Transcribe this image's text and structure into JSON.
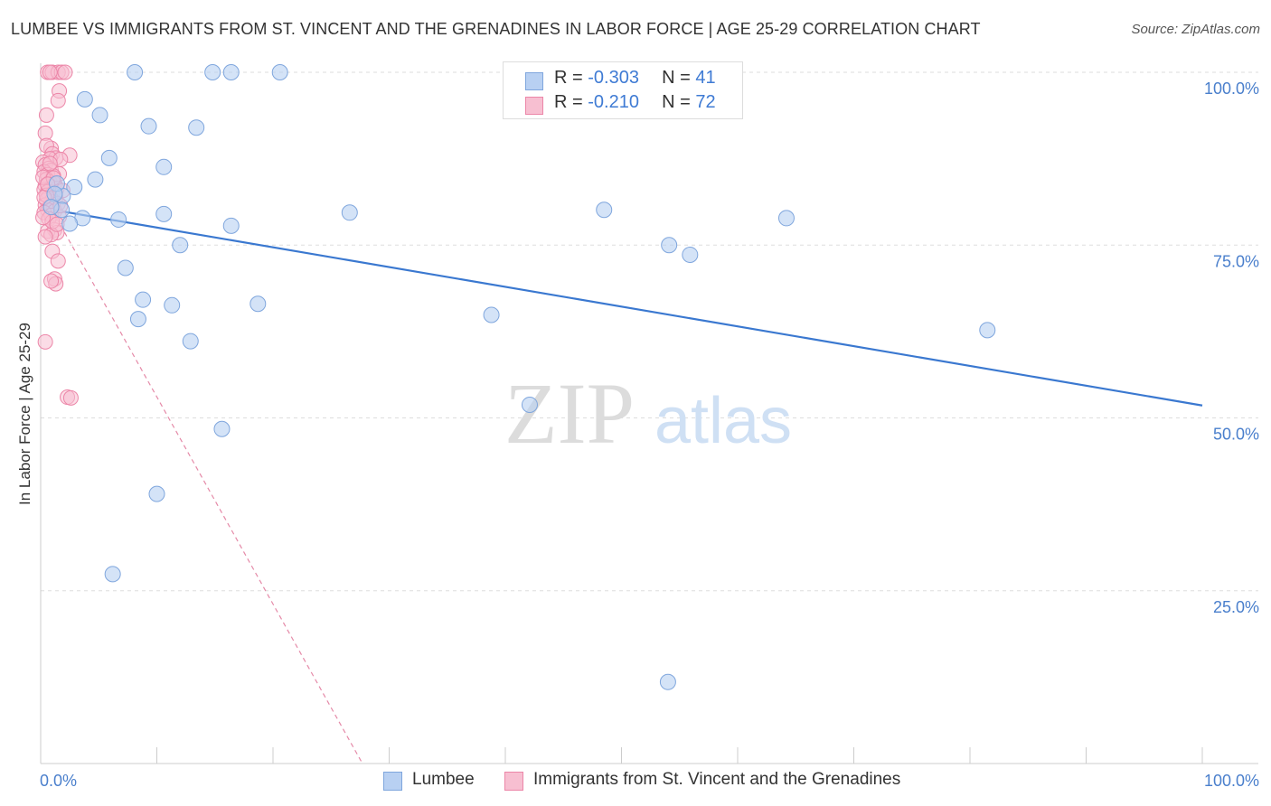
{
  "title": "LUMBEE VS IMMIGRANTS FROM ST. VINCENT AND THE GRENADINES IN LABOR FORCE | AGE 25-29 CORRELATION CHART",
  "source": "Source: ZipAtlas.com",
  "legend": {
    "row1": {
      "r_label": "R =",
      "r_value": "-0.303",
      "n_label": "N =",
      "n_value": "41"
    },
    "row2": {
      "r_label": "R =",
      "r_value": "-0.210",
      "n_label": "N =",
      "n_value": "72"
    }
  },
  "watermark": {
    "zip": "ZIP",
    "atlas": "atlas"
  },
  "colors": {
    "blue_fill": "#b8d0f2",
    "blue_stroke": "#7fa6dd",
    "blue_line": "#3a78d0",
    "pink_fill": "#f7bfd1",
    "pink_stroke": "#ec86a8",
    "pink_line": "#e58aa8",
    "axis_text": "#4a7fcc",
    "grid": "#dddddd"
  },
  "chart_data": {
    "type": "scatter",
    "title": "LUMBEE VS IMMIGRANTS FROM ST. VINCENT AND THE GRENADINES IN LABOR FORCE | AGE 25-29 CORRELATION CHART",
    "xlabel": "",
    "ylabel": "In Labor Force | Age 25-29",
    "xlim": [
      0,
      100
    ],
    "ylim": [
      0,
      100
    ],
    "x_tick_labels": [
      "0.0%",
      "100.0%"
    ],
    "y_ticks": [
      {
        "value": 25,
        "label": "25.0%"
      },
      {
        "value": 50,
        "label": "50.0%"
      },
      {
        "value": 75,
        "label": "75.0%"
      },
      {
        "value": 100,
        "label": "100.0%"
      }
    ],
    "grid": true,
    "legend_position": "top-center",
    "series": [
      {
        "name": "Lumbee",
        "color": "blue",
        "trend": {
          "x0": 0,
          "y0": 80.4,
          "x1": 100,
          "y1": 51.8
        },
        "points": [
          [
            8.1,
            100
          ],
          [
            14.8,
            100
          ],
          [
            16.4,
            100
          ],
          [
            20.6,
            100
          ],
          [
            3.8,
            96.1
          ],
          [
            5.1,
            93.8
          ],
          [
            9.3,
            92.2
          ],
          [
            13.4,
            92.0
          ],
          [
            5.9,
            87.6
          ],
          [
            10.6,
            86.3
          ],
          [
            4.7,
            84.5
          ],
          [
            2.9,
            83.4
          ],
          [
            1.9,
            82.1
          ],
          [
            1.8,
            80.1
          ],
          [
            3.6,
            78.9
          ],
          [
            6.7,
            78.7
          ],
          [
            10.6,
            79.5
          ],
          [
            16.4,
            77.8
          ],
          [
            26.6,
            79.7
          ],
          [
            48.5,
            80.1
          ],
          [
            64.2,
            78.9
          ],
          [
            2.5,
            78.1
          ],
          [
            12.0,
            75.0
          ],
          [
            7.3,
            71.7
          ],
          [
            54.1,
            75.0
          ],
          [
            55.9,
            73.6
          ],
          [
            8.8,
            67.1
          ],
          [
            11.3,
            66.3
          ],
          [
            18.7,
            66.5
          ],
          [
            8.4,
            64.3
          ],
          [
            38.8,
            64.9
          ],
          [
            81.5,
            62.7
          ],
          [
            12.9,
            61.1
          ],
          [
            42.1,
            51.9
          ],
          [
            15.6,
            48.4
          ],
          [
            10.0,
            39.0
          ],
          [
            6.2,
            27.4
          ],
          [
            54.0,
            11.8
          ],
          [
            1.4,
            83.9
          ],
          [
            1.2,
            82.4
          ],
          [
            0.9,
            80.5
          ]
        ]
      },
      {
        "name": "Immigrants from St. Vincent and the Grenadines",
        "color": "pink",
        "trend": {
          "x0": 0,
          "y0": 83.0,
          "x1": 27.7,
          "y1": 0
        },
        "points": [
          [
            0.6,
            100
          ],
          [
            1.0,
            100
          ],
          [
            1.5,
            100
          ],
          [
            1.8,
            100
          ],
          [
            2.1,
            100
          ],
          [
            0.8,
            100
          ],
          [
            1.6,
            97.3
          ],
          [
            1.5,
            95.9
          ],
          [
            0.5,
            93.8
          ],
          [
            0.4,
            91.2
          ],
          [
            0.9,
            89.0
          ],
          [
            0.5,
            89.4
          ],
          [
            1.0,
            88.2
          ],
          [
            2.5,
            88.0
          ],
          [
            1.3,
            87.6
          ],
          [
            0.8,
            87.5
          ],
          [
            0.2,
            87.0
          ],
          [
            1.7,
            87.4
          ],
          [
            0.4,
            86.6
          ],
          [
            0.7,
            86.1
          ],
          [
            0.9,
            85.8
          ],
          [
            0.3,
            85.6
          ],
          [
            1.6,
            85.3
          ],
          [
            0.6,
            85.2
          ],
          [
            1.1,
            85.0
          ],
          [
            0.5,
            84.5
          ],
          [
            0.8,
            84.1
          ],
          [
            1.2,
            83.9
          ],
          [
            0.4,
            83.6
          ],
          [
            0.9,
            83.4
          ],
          [
            1.4,
            83.2
          ],
          [
            0.3,
            83.0
          ],
          [
            0.6,
            82.7
          ],
          [
            1.0,
            82.4
          ],
          [
            0.7,
            82.0
          ],
          [
            1.3,
            81.8
          ],
          [
            0.5,
            81.5
          ],
          [
            0.9,
            81.3
          ],
          [
            1.5,
            81.0
          ],
          [
            0.4,
            80.8
          ],
          [
            0.8,
            80.6
          ],
          [
            1.1,
            80.4
          ],
          [
            0.6,
            80.1
          ],
          [
            1.2,
            79.9
          ],
          [
            0.3,
            79.7
          ],
          [
            0.9,
            79.3
          ],
          [
            1.6,
            79.1
          ],
          [
            0.7,
            78.8
          ],
          [
            1.2,
            77.2
          ],
          [
            0.6,
            77.0
          ],
          [
            1.4,
            76.8
          ],
          [
            0.9,
            76.5
          ],
          [
            0.4,
            76.2
          ],
          [
            1.0,
            74.1
          ],
          [
            1.5,
            72.7
          ],
          [
            1.2,
            70.1
          ],
          [
            1.3,
            69.4
          ],
          [
            0.9,
            69.8
          ],
          [
            0.4,
            61.0
          ],
          [
            2.3,
            53.0
          ],
          [
            2.6,
            52.9
          ],
          [
            0.2,
            84.8
          ],
          [
            1.9,
            82.9
          ],
          [
            0.5,
            82.2
          ],
          [
            1.0,
            78.4
          ],
          [
            1.7,
            80.7
          ],
          [
            0.8,
            86.8
          ],
          [
            0.3,
            81.9
          ],
          [
            1.1,
            84.7
          ],
          [
            0.6,
            83.8
          ],
          [
            1.4,
            78.0
          ],
          [
            0.2,
            79.0
          ]
        ]
      }
    ]
  }
}
